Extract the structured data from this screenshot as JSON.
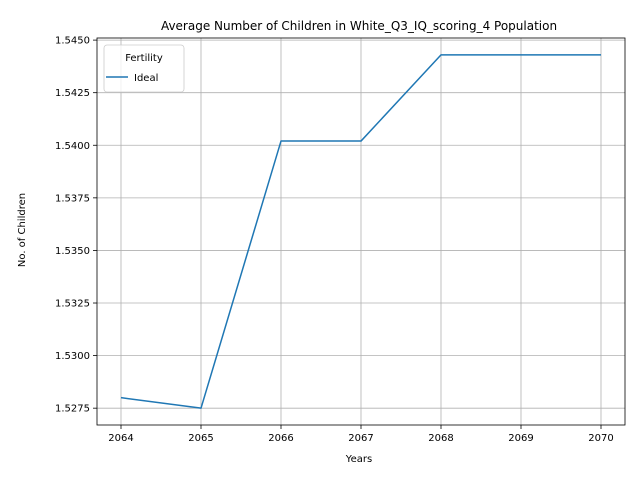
{
  "chart_data": {
    "type": "line",
    "title": "Average Number of Children in White_Q3_IQ_scoring_4 Population",
    "xlabel": "Years",
    "ylabel": "No. of Children",
    "x": [
      2064,
      2065,
      2066,
      2067,
      2068,
      2069,
      2070
    ],
    "x_ticks": [
      "2064",
      "2065",
      "2066",
      "2067",
      "2068",
      "2069",
      "2070"
    ],
    "y_ticks": [
      "1.5275",
      "1.5300",
      "1.5325",
      "1.5350",
      "1.5375",
      "1.5400",
      "1.5425",
      "1.5450"
    ],
    "xlim": [
      2063.7,
      2070.3
    ],
    "ylim": [
      1.5267,
      1.5451
    ],
    "grid": true,
    "legend": {
      "title": "Fertility",
      "placement": "top-left"
    },
    "series": [
      {
        "name": "Ideal",
        "color": "#1f77b4",
        "values": [
          1.528,
          1.5275,
          1.5402,
          1.5402,
          1.5443,
          1.5443,
          1.5443
        ]
      }
    ]
  }
}
